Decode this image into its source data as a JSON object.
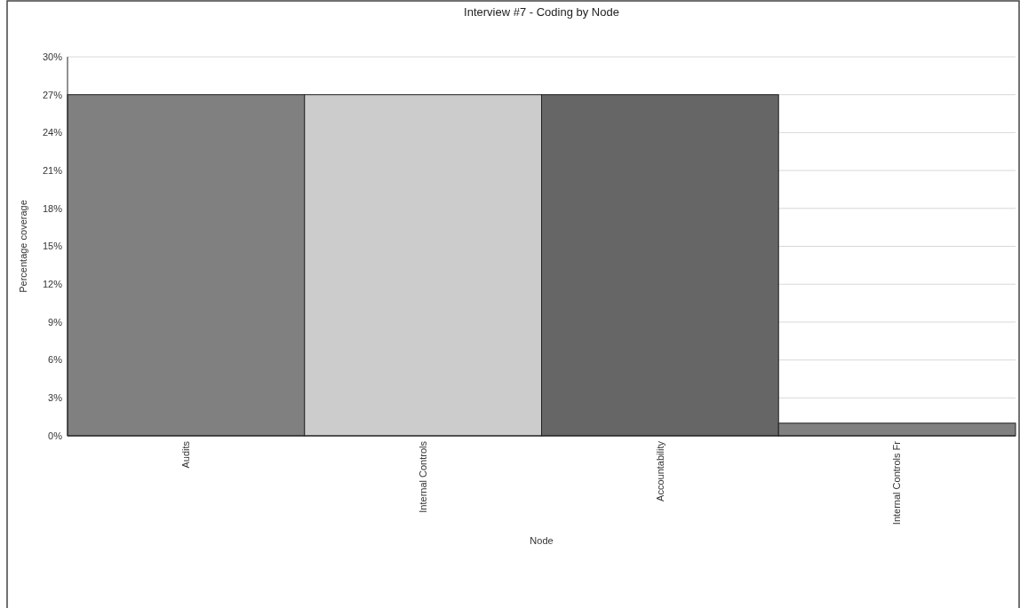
{
  "chart_data": {
    "type": "bar",
    "title": "Interview #7 - Coding by Node",
    "xlabel": "Node",
    "ylabel": "Percentage coverage",
    "categories": [
      "Audits",
      "Internal Controls",
      "Accountability",
      "Internal Controls Fr"
    ],
    "values": [
      27,
      27,
      27,
      1
    ],
    "colors": [
      "#808080",
      "#cccccc",
      "#666666",
      "#808080"
    ],
    "ylim": [
      0,
      30
    ],
    "yticks": [
      {
        "value": 0,
        "label": "0%"
      },
      {
        "value": 3,
        "label": "3%"
      },
      {
        "value": 6,
        "label": "6%"
      },
      {
        "value": 9,
        "label": "9%"
      },
      {
        "value": 12,
        "label": "12%"
      },
      {
        "value": 15,
        "label": "15%"
      },
      {
        "value": 18,
        "label": "18%"
      },
      {
        "value": 21,
        "label": "21%"
      },
      {
        "value": 24,
        "label": "24%"
      },
      {
        "value": 27,
        "label": "27%"
      },
      {
        "value": 30,
        "label": "30%"
      }
    ],
    "grid": "y"
  }
}
